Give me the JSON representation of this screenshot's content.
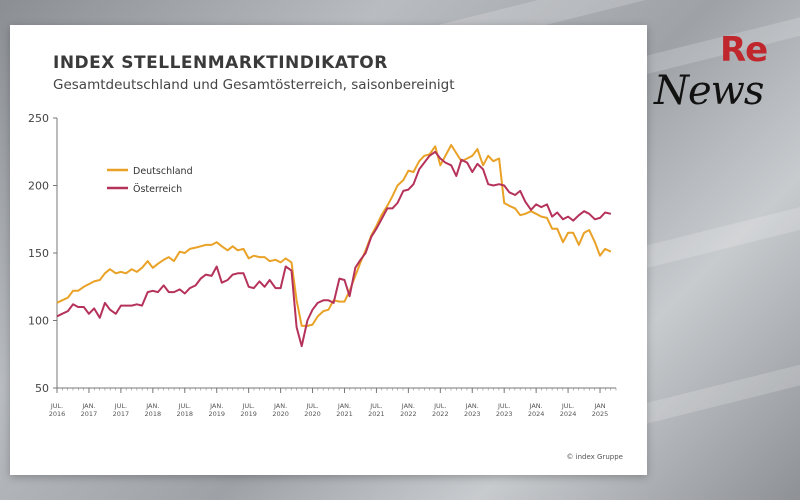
{
  "logo": {
    "re": "Re",
    "news": "News"
  },
  "chart_data": {
    "type": "line",
    "title": "INDEX STELLENMARKTINDIKATOR",
    "subtitle": "Gesamtdeutschland und Gesamtösterreich, saisonbereinigt",
    "credit": "© index Gruppe",
    "ylim": [
      50,
      250
    ],
    "yticks": [
      50,
      100,
      150,
      200,
      250
    ],
    "xlim": [
      2016.5,
      2025.25
    ],
    "grid": false,
    "legend_position": "top-left",
    "xticks": [
      {
        "x": 2016.5,
        "l1": "JUL.",
        "l2": "2016"
      },
      {
        "x": 2017.0,
        "l1": "JAN.",
        "l2": "2017"
      },
      {
        "x": 2017.5,
        "l1": "JUL.",
        "l2": "2017"
      },
      {
        "x": 2018.0,
        "l1": "JAN.",
        "l2": "2018"
      },
      {
        "x": 2018.5,
        "l1": "JUL.",
        "l2": "2018"
      },
      {
        "x": 2019.0,
        "l1": "JAN.",
        "l2": "2019"
      },
      {
        "x": 2019.5,
        "l1": "JUL.",
        "l2": "2019"
      },
      {
        "x": 2020.0,
        "l1": "JAN.",
        "l2": "2020"
      },
      {
        "x": 2020.5,
        "l1": "JUL.",
        "l2": "2020"
      },
      {
        "x": 2021.0,
        "l1": "JAN.",
        "l2": "2021"
      },
      {
        "x": 2021.5,
        "l1": "JUL.",
        "l2": "2021"
      },
      {
        "x": 2022.0,
        "l1": "JAN.",
        "l2": "2022"
      },
      {
        "x": 2022.5,
        "l1": "JUL.",
        "l2": "2022"
      },
      {
        "x": 2023.0,
        "l1": "JAN.",
        "l2": "2023"
      },
      {
        "x": 2023.5,
        "l1": "JUL.",
        "l2": "2023"
      },
      {
        "x": 2024.0,
        "l1": "JAN.",
        "l2": "2024"
      },
      {
        "x": 2024.5,
        "l1": "JUL.",
        "l2": "2024"
      },
      {
        "x": 2025.0,
        "l1": "JAN",
        "l2": "2025"
      }
    ],
    "series": [
      {
        "name": "Deutschland",
        "color": "#e9a227",
        "points": [
          [
            2016.5,
            113
          ],
          [
            2016.58,
            115
          ],
          [
            2016.67,
            117
          ],
          [
            2016.75,
            122
          ],
          [
            2016.83,
            122
          ],
          [
            2016.92,
            125
          ],
          [
            2017.0,
            127
          ],
          [
            2017.08,
            129
          ],
          [
            2017.17,
            130
          ],
          [
            2017.25,
            135
          ],
          [
            2017.33,
            138
          ],
          [
            2017.42,
            135
          ],
          [
            2017.5,
            136
          ],
          [
            2017.58,
            135
          ],
          [
            2017.67,
            138
          ],
          [
            2017.75,
            136
          ],
          [
            2017.83,
            139
          ],
          [
            2017.92,
            144
          ],
          [
            2018.0,
            139
          ],
          [
            2018.08,
            142
          ],
          [
            2018.17,
            145
          ],
          [
            2018.25,
            147
          ],
          [
            2018.33,
            144
          ],
          [
            2018.42,
            151
          ],
          [
            2018.5,
            150
          ],
          [
            2018.58,
            153
          ],
          [
            2018.67,
            154
          ],
          [
            2018.75,
            155
          ],
          [
            2018.83,
            156
          ],
          [
            2018.92,
            156
          ],
          [
            2019.0,
            158
          ],
          [
            2019.08,
            155
          ],
          [
            2019.17,
            152
          ],
          [
            2019.25,
            155
          ],
          [
            2019.33,
            152
          ],
          [
            2019.42,
            153
          ],
          [
            2019.5,
            146
          ],
          [
            2019.58,
            148
          ],
          [
            2019.67,
            147
          ],
          [
            2019.75,
            147
          ],
          [
            2019.83,
            144
          ],
          [
            2019.92,
            145
          ],
          [
            2020.0,
            143
          ],
          [
            2020.08,
            146
          ],
          [
            2020.17,
            143
          ],
          [
            2020.25,
            115
          ],
          [
            2020.33,
            96
          ],
          [
            2020.42,
            96
          ],
          [
            2020.5,
            97
          ],
          [
            2020.58,
            103
          ],
          [
            2020.67,
            107
          ],
          [
            2020.75,
            108
          ],
          [
            2020.83,
            115
          ],
          [
            2020.92,
            114
          ],
          [
            2021.0,
            114
          ],
          [
            2021.08,
            122
          ],
          [
            2021.17,
            133
          ],
          [
            2021.25,
            143
          ],
          [
            2021.33,
            152
          ],
          [
            2021.42,
            163
          ],
          [
            2021.5,
            170
          ],
          [
            2021.58,
            178
          ],
          [
            2021.67,
            185
          ],
          [
            2021.75,
            192
          ],
          [
            2021.83,
            200
          ],
          [
            2021.92,
            204
          ],
          [
            2022.0,
            211
          ],
          [
            2022.08,
            210
          ],
          [
            2022.17,
            218
          ],
          [
            2022.25,
            222
          ],
          [
            2022.33,
            223
          ],
          [
            2022.42,
            229
          ],
          [
            2022.5,
            215
          ],
          [
            2022.58,
            222
          ],
          [
            2022.67,
            230
          ],
          [
            2022.75,
            224
          ],
          [
            2022.83,
            218
          ],
          [
            2022.92,
            220
          ],
          [
            2023.0,
            222
          ],
          [
            2023.08,
            227
          ],
          [
            2023.17,
            215
          ],
          [
            2023.25,
            222
          ],
          [
            2023.33,
            218
          ],
          [
            2023.42,
            220
          ],
          [
            2023.5,
            187
          ],
          [
            2023.58,
            185
          ],
          [
            2023.67,
            183
          ],
          [
            2023.75,
            178
          ],
          [
            2023.83,
            179
          ],
          [
            2023.92,
            181
          ],
          [
            2024.0,
            179
          ],
          [
            2024.08,
            177
          ],
          [
            2024.17,
            176
          ],
          [
            2024.25,
            168
          ],
          [
            2024.33,
            168
          ],
          [
            2024.42,
            158
          ],
          [
            2024.5,
            165
          ],
          [
            2024.58,
            165
          ],
          [
            2024.67,
            156
          ],
          [
            2024.75,
            165
          ],
          [
            2024.83,
            167
          ],
          [
            2024.92,
            158
          ],
          [
            2025.0,
            148
          ],
          [
            2025.08,
            153
          ],
          [
            2025.17,
            151
          ]
        ]
      },
      {
        "name": "Österreich",
        "color": "#b5325a",
        "points": [
          [
            2016.5,
            103
          ],
          [
            2016.58,
            105
          ],
          [
            2016.67,
            107
          ],
          [
            2016.75,
            112
          ],
          [
            2016.83,
            110
          ],
          [
            2016.92,
            110
          ],
          [
            2017.0,
            105
          ],
          [
            2017.08,
            109
          ],
          [
            2017.17,
            102
          ],
          [
            2017.25,
            113
          ],
          [
            2017.33,
            108
          ],
          [
            2017.42,
            105
          ],
          [
            2017.5,
            111
          ],
          [
            2017.58,
            111
          ],
          [
            2017.67,
            111
          ],
          [
            2017.75,
            112
          ],
          [
            2017.83,
            111
          ],
          [
            2017.92,
            121
          ],
          [
            2018.0,
            122
          ],
          [
            2018.08,
            121
          ],
          [
            2018.17,
            126
          ],
          [
            2018.25,
            121
          ],
          [
            2018.33,
            121
          ],
          [
            2018.42,
            123
          ],
          [
            2018.5,
            120
          ],
          [
            2018.58,
            124
          ],
          [
            2018.67,
            126
          ],
          [
            2018.75,
            131
          ],
          [
            2018.83,
            134
          ],
          [
            2018.92,
            133
          ],
          [
            2019.0,
            140
          ],
          [
            2019.08,
            128
          ],
          [
            2019.17,
            130
          ],
          [
            2019.25,
            134
          ],
          [
            2019.33,
            135
          ],
          [
            2019.42,
            135
          ],
          [
            2019.5,
            125
          ],
          [
            2019.58,
            124
          ],
          [
            2019.67,
            129
          ],
          [
            2019.75,
            125
          ],
          [
            2019.83,
            130
          ],
          [
            2019.92,
            124
          ],
          [
            2020.0,
            124
          ],
          [
            2020.08,
            140
          ],
          [
            2020.17,
            137
          ],
          [
            2020.25,
            95
          ],
          [
            2020.33,
            81
          ],
          [
            2020.42,
            100
          ],
          [
            2020.5,
            108
          ],
          [
            2020.58,
            113
          ],
          [
            2020.67,
            115
          ],
          [
            2020.75,
            115
          ],
          [
            2020.83,
            113
          ],
          [
            2020.92,
            131
          ],
          [
            2021.0,
            130
          ],
          [
            2021.08,
            118
          ],
          [
            2021.17,
            139
          ],
          [
            2021.25,
            145
          ],
          [
            2021.33,
            150
          ],
          [
            2021.42,
            162
          ],
          [
            2021.5,
            168
          ],
          [
            2021.58,
            175
          ],
          [
            2021.67,
            183
          ],
          [
            2021.75,
            183
          ],
          [
            2021.83,
            187
          ],
          [
            2021.92,
            196
          ],
          [
            2022.0,
            197
          ],
          [
            2022.08,
            201
          ],
          [
            2022.17,
            212
          ],
          [
            2022.25,
            217
          ],
          [
            2022.33,
            222
          ],
          [
            2022.42,
            225
          ],
          [
            2022.5,
            220
          ],
          [
            2022.58,
            217
          ],
          [
            2022.67,
            215
          ],
          [
            2022.75,
            207
          ],
          [
            2022.83,
            219
          ],
          [
            2022.92,
            217
          ],
          [
            2023.0,
            210
          ],
          [
            2023.08,
            216
          ],
          [
            2023.17,
            212
          ],
          [
            2023.25,
            201
          ],
          [
            2023.33,
            200
          ],
          [
            2023.42,
            201
          ],
          [
            2023.5,
            200
          ],
          [
            2023.58,
            195
          ],
          [
            2023.67,
            193
          ],
          [
            2023.75,
            196
          ],
          [
            2023.83,
            188
          ],
          [
            2023.92,
            182
          ],
          [
            2024.0,
            186
          ],
          [
            2024.08,
            184
          ],
          [
            2024.17,
            186
          ],
          [
            2024.25,
            177
          ],
          [
            2024.33,
            180
          ],
          [
            2024.42,
            175
          ],
          [
            2024.5,
            177
          ],
          [
            2024.58,
            174
          ],
          [
            2024.67,
            178
          ],
          [
            2024.75,
            181
          ],
          [
            2024.83,
            179
          ],
          [
            2024.92,
            175
          ],
          [
            2025.0,
            176
          ],
          [
            2025.08,
            180
          ],
          [
            2025.17,
            179
          ]
        ]
      }
    ]
  }
}
